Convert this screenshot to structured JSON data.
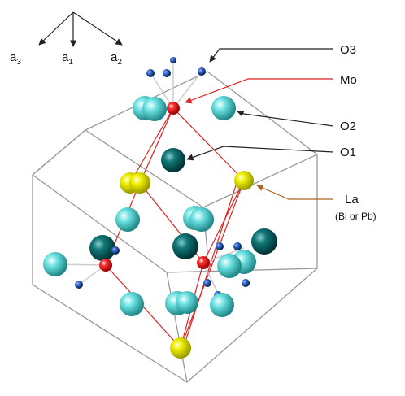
{
  "axes": [
    {
      "letter": "a",
      "sub": "3"
    },
    {
      "letter": "a",
      "sub": "1"
    },
    {
      "letter": "a",
      "sub": "2"
    }
  ],
  "labels": {
    "o3": "O3",
    "mo": "Mo",
    "o2": "O2",
    "o1": "O1",
    "la": "La",
    "la_note": "(Bi or Pb)"
  }
}
